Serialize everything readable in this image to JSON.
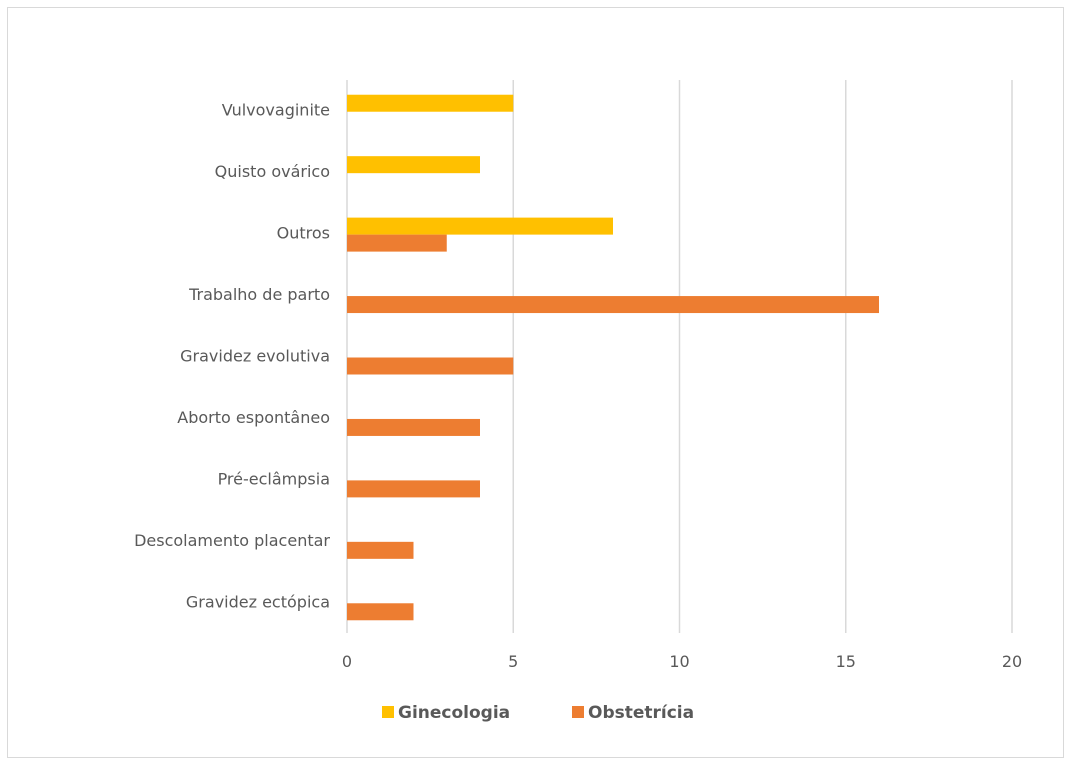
{
  "chart_data": {
    "type": "bar",
    "orientation": "horizontal",
    "categories": [
      "Vulvovaginite",
      "Quisto ovárico",
      "Outros",
      "Trabalho de parto",
      "Gravidez evolutiva",
      "Aborto espontâneo",
      "Pré-eclâmpsia",
      "Descolamento placentar",
      "Gravidez ectópica"
    ],
    "series": [
      {
        "name": "Ginecologia",
        "color": "#FFC000",
        "values": [
          5,
          4,
          8,
          null,
          null,
          null,
          null,
          null,
          null
        ]
      },
      {
        "name": "Obstetrícia",
        "color": "#ED7D31",
        "values": [
          null,
          null,
          3,
          16,
          5,
          4,
          4,
          2,
          2
        ]
      }
    ],
    "xlim": [
      0,
      20
    ],
    "xticks": [
      0,
      5,
      10,
      15,
      20
    ],
    "grid": true,
    "legend_position": "bottom",
    "title": "",
    "xlabel": "",
    "ylabel": ""
  }
}
